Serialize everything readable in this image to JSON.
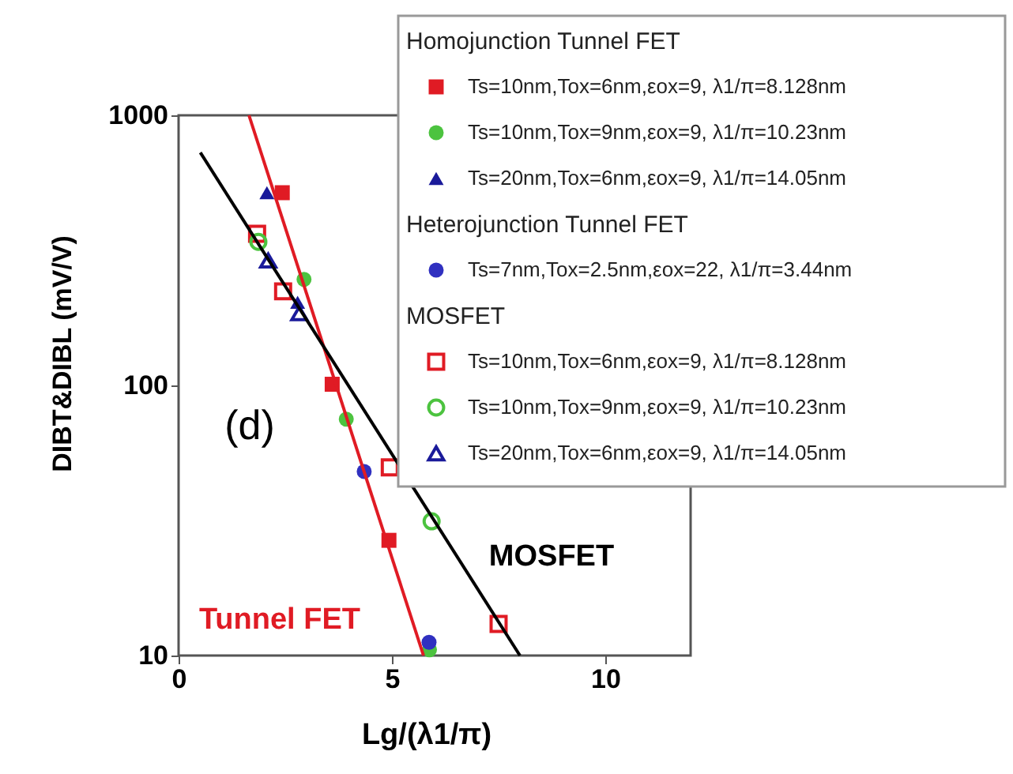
{
  "chart_data": {
    "type": "scatter",
    "xlabel": "Lg/(λ1/π)",
    "ylabel": "DIBT&DIBL (mV/V)",
    "xlim": [
      0,
      12
    ],
    "xticks": [
      0,
      5,
      {
        "value": 10,
        "label": "10"
      }
    ],
    "ylim": [
      10,
      1000
    ],
    "yticks": [
      10,
      100,
      1000
    ],
    "log": "y",
    "grid": false,
    "legend": "top right",
    "annotations": [
      "(d)",
      "Homojunction Tunnel FET",
      "Heterojunction Tunnel FET",
      "MOSFET"
    ],
    "series": [
      {
        "name": "Ts=10nm,Tox=6nm,εox=9, λ1/π=8.128nm",
        "color": "#e01b24",
        "marker": "square",
        "x": [
          2.43,
          3.6,
          4.93
        ],
        "values": [
          517,
          101,
          26.7
        ]
      },
      {
        "name": "Ts=10nm,Tox=9nm,εox=9, λ1/π=10.23nm",
        "color": "#4cc33f",
        "marker": "circle",
        "x": [
          2.94,
          3.93,
          5.88
        ],
        "values": [
          247,
          75,
          10.5
        ]
      },
      {
        "name": "Ts=20nm,Tox=6nm,εox=9, λ1/π=14.05nm",
        "color": "#1a1a9a",
        "marker": "triangle",
        "x": [
          2.07,
          2.79
        ],
        "values": [
          517,
          203
        ]
      },
      {
        "name": "Ts=7nm,Tox=2.5nm,εox=22, λ1/π=3.44nm",
        "color": "#3030c0",
        "marker": "circle",
        "x": [
          4.35,
          5.87
        ],
        "values": [
          48,
          11.2
        ]
      },
      {
        "name": "Ts=10nm,Tox=6nm,εox=9, λ1/π=8.128nm",
        "color": "#e01b24",
        "marker": "square",
        "x": [
          1.84,
          2.45,
          4.95,
          7.5
        ],
        "values": [
          364,
          223,
          49.7,
          13.1
        ]
      },
      {
        "name": "Ts=10nm,Tox=9nm,εox=9, λ1/π=10.23nm",
        "color": "#4cc33f",
        "marker": "circle",
        "x": [
          1.87,
          5.93
        ],
        "values": [
          340,
          31.4
        ]
      },
      {
        "name": "Ts=20nm,Tox=6nm,εox=9, λ1/π=14.05nm",
        "color": "#1a1a9a",
        "marker": "triangle",
        "x": [
          2.1,
          2.83
        ],
        "values": [
          290,
          185
        ]
      },
      {
        "name": "Tunnel FET",
        "type": "line",
        "color": "#e01b24",
        "marker": "none",
        "line_style": "solid",
        "x": [
          1.65,
          5.74
        ],
        "values": [
          1000,
          10
        ]
      },
      {
        "name": "MOSFET",
        "type": "line",
        "color": "#000000",
        "marker": "none",
        "line_style": "solid",
        "x": [
          0.51,
          8.0
        ],
        "values": [
          728,
          10
        ]
      }
    ]
  }
}
